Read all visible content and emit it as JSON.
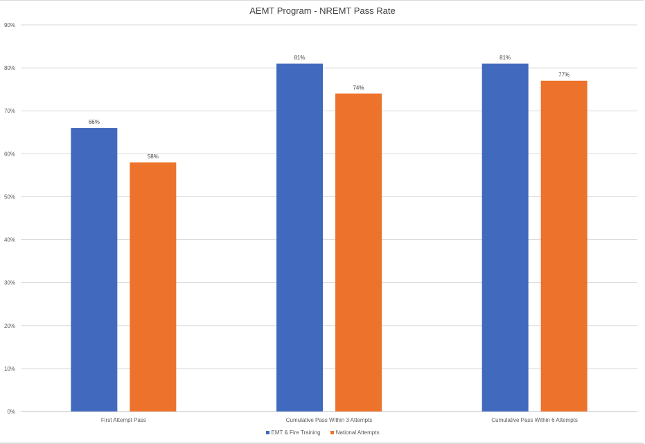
{
  "chart_data": {
    "type": "bar",
    "title": "AEMT Program - NREMT Pass Rate",
    "categories": [
      "First Attempt Pass",
      "Cumulative Pass Within 3 Attempts",
      "Cumulative Pass Within 6 Attempts"
    ],
    "series": [
      {
        "name": "EMT & Fire Training",
        "color": "#4169be",
        "values": [
          66,
          81,
          81
        ]
      },
      {
        "name": "National Attempts",
        "color": "#ed722b",
        "values": [
          58,
          74,
          77
        ]
      }
    ],
    "xlabel": "",
    "ylabel": "",
    "ylim": [
      0,
      90
    ],
    "yticks": [
      "0%",
      "10%",
      "20%",
      "30%",
      "40%",
      "50%",
      "60%",
      "70%",
      "80%",
      "90%"
    ],
    "grid": true,
    "legend": "bottom"
  }
}
